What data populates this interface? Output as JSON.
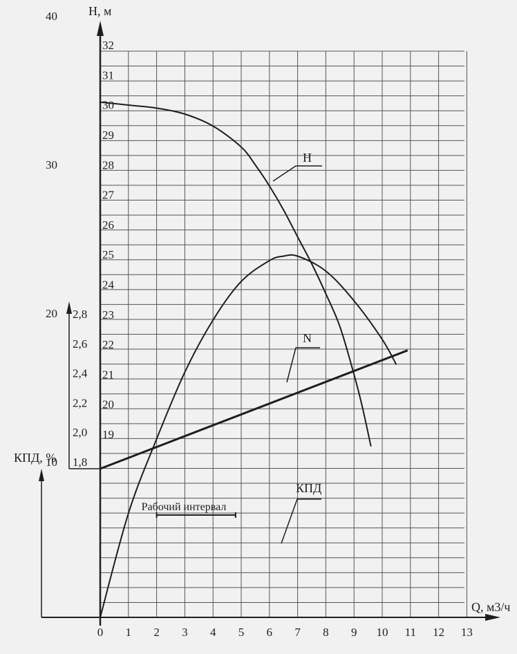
{
  "chart_data": {
    "type": "line",
    "x_axis": {
      "label": "Q, м3/ч",
      "range": [
        0,
        13
      ],
      "ticks": [
        "0",
        "1",
        "2",
        "3",
        "4",
        "5",
        "6",
        "7",
        "8",
        "9",
        "10",
        "11",
        "12",
        "13"
      ]
    },
    "y_axes": [
      {
        "id": "H",
        "label": "H, м",
        "range": [
          18,
          32
        ],
        "ticks": [
          "19",
          "20",
          "21",
          "22",
          "23",
          "24",
          "25",
          "26",
          "27",
          "28",
          "29",
          "30",
          "31",
          "32"
        ]
      },
      {
        "id": "N",
        "label": "",
        "range": [
          1.8,
          2.8
        ],
        "ticks": [
          "1,8",
          "2,0",
          "2,2",
          "2,4",
          "2,6",
          "2,8"
        ]
      },
      {
        "id": "KPD",
        "label": "КПД, %",
        "range": [
          0,
          40
        ],
        "ticks": [
          "10",
          "20",
          "30",
          "40"
        ]
      }
    ],
    "series": [
      {
        "name": "H",
        "axis": "H",
        "x": [
          0,
          1,
          2,
          3,
          4,
          5,
          5.5,
          6,
          6.5,
          7,
          7.5,
          8,
          8.5,
          9,
          9.3,
          9.6
        ],
        "values": [
          30.3,
          30.2,
          30.1,
          29.9,
          29.5,
          28.8,
          28.2,
          27.5,
          26.7,
          25.8,
          24.9,
          23.9,
          22.8,
          21.2,
          20.1,
          18.8
        ]
      },
      {
        "name": "N",
        "axis": "N",
        "x": [
          0,
          10.9
        ],
        "values": [
          1.8,
          2.6
        ]
      },
      {
        "name": "КПД",
        "axis": "KPD",
        "x": [
          0,
          1,
          2,
          3,
          4,
          5,
          6,
          6.5,
          7,
          8,
          9,
          10,
          10.5
        ],
        "values": [
          0,
          7,
          12,
          16.5,
          20,
          22.6,
          24,
          24.3,
          24.3,
          23.3,
          21.3,
          18.7,
          17
        ]
      }
    ],
    "annotations": [
      {
        "text": "Рабочий интервал",
        "x_range": [
          2,
          4.8
        ]
      }
    ],
    "grid": true
  }
}
